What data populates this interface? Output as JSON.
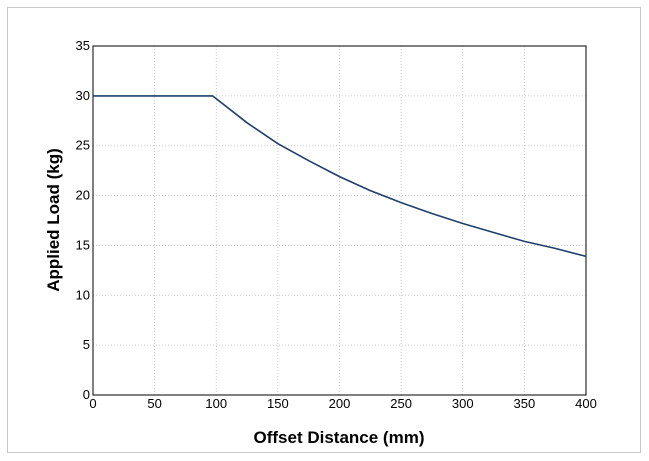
{
  "chart_data": {
    "type": "line",
    "title": "",
    "xlabel": "Offset Distance (mm)",
    "ylabel": "Applied Load (kg)",
    "xlim": [
      0,
      400
    ],
    "ylim": [
      0,
      35
    ],
    "x_ticks": [
      0,
      50,
      100,
      150,
      200,
      250,
      300,
      350,
      400
    ],
    "y_ticks": [
      0,
      5,
      10,
      15,
      20,
      25,
      30,
      35
    ],
    "x_tick_labels": [
      "0",
      "50",
      "100",
      "150",
      "200",
      "250",
      "300",
      "350",
      "400"
    ],
    "y_tick_labels": [
      "0",
      "5",
      "10",
      "15",
      "20",
      "25",
      "30",
      "35"
    ],
    "grid": true,
    "legend": "none",
    "series": [
      {
        "color": "#1f3f6b",
        "x": [
          0,
          50,
          97,
          100,
          125,
          150,
          175,
          200,
          225,
          250,
          275,
          300,
          325,
          350,
          375,
          400
        ],
        "y": [
          30,
          30,
          30,
          29.7,
          27.3,
          25.2,
          23.5,
          21.9,
          20.5,
          19.3,
          18.2,
          17.2,
          16.3,
          15.4,
          14.7,
          13.9
        ]
      }
    ]
  }
}
